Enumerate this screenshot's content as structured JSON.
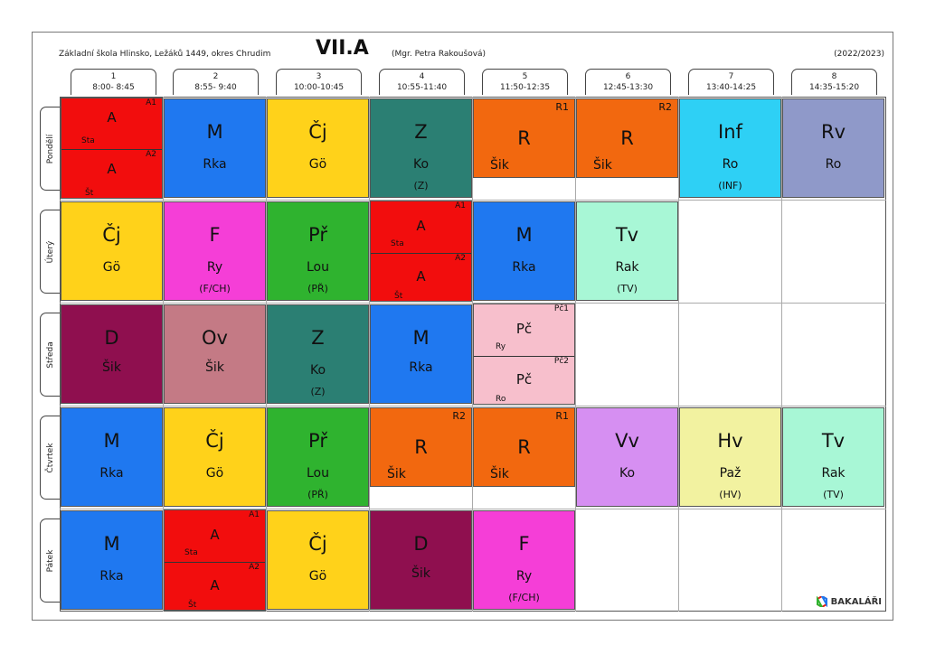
{
  "header": {
    "school": "Základní škola Hlinsko, Ležáků 1449, okres Chrudim",
    "class_name": "VII.A",
    "teacher": "(Mgr. Petra Rakoušová)",
    "year": "(2022/2023)"
  },
  "periods": [
    {
      "num": "1",
      "time": "8:00- 8:45"
    },
    {
      "num": "2",
      "time": "8:55- 9:40"
    },
    {
      "num": "3",
      "time": "10:00-10:45"
    },
    {
      "num": "4",
      "time": "10:55-11:40"
    },
    {
      "num": "5",
      "time": "11:50-12:35"
    },
    {
      "num": "6",
      "time": "12:45-13:30"
    },
    {
      "num": "7",
      "time": "13:40-14:25"
    },
    {
      "num": "8",
      "time": "14:35-15:20"
    }
  ],
  "days": [
    "Pondělí",
    "Úterý",
    "Středa",
    "Čtvrtek",
    "Pátek"
  ],
  "lessons": {
    "mon": {
      "p1": {
        "top": {
          "subject": "A",
          "group": "A1",
          "teacher": "Sta"
        },
        "bottom": {
          "subject": "A",
          "group": "A2",
          "teacher": "Št"
        }
      },
      "p2": {
        "subject": "M",
        "teacher": "Rka"
      },
      "p3": {
        "subject": "Čj",
        "teacher": "Gö"
      },
      "p4": {
        "subject": "Z",
        "teacher": "Ko",
        "room": "(Z)"
      },
      "p5": {
        "subject": "R",
        "teacher": "Šik",
        "group": "R1"
      },
      "p6": {
        "subject": "R",
        "teacher": "Šik",
        "group": "R2"
      },
      "p7": {
        "subject": "Inf",
        "teacher": "Ro",
        "room": "(INF)"
      },
      "p8": {
        "subject": "Rv",
        "teacher": "Ro"
      }
    },
    "tue": {
      "p1": {
        "subject": "Čj",
        "teacher": "Gö"
      },
      "p2": {
        "subject": "F",
        "teacher": "Ry",
        "room": "(F/CH)"
      },
      "p3": {
        "subject": "Př",
        "teacher": "Lou",
        "room": "(PŘ)"
      },
      "p4": {
        "top": {
          "subject": "A",
          "group": "A1",
          "teacher": "Sta"
        },
        "bottom": {
          "subject": "A",
          "group": "A2",
          "teacher": "Št"
        }
      },
      "p5": {
        "subject": "M",
        "teacher": "Rka"
      },
      "p6": {
        "subject": "Tv",
        "teacher": "Rak",
        "room": "(TV)"
      }
    },
    "wed": {
      "p1": {
        "subject": "D",
        "teacher": "Šik"
      },
      "p2": {
        "subject": "Ov",
        "teacher": "Šik"
      },
      "p3": {
        "subject": "Z",
        "teacher": "Ko",
        "room": "(Z)"
      },
      "p4": {
        "subject": "M",
        "teacher": "Rka"
      },
      "p5": {
        "top": {
          "subject": "Pč",
          "group": "Pč1",
          "teacher": "Ry"
        },
        "bottom": {
          "subject": "Pč",
          "group": "Pč2",
          "teacher": "Ro"
        }
      }
    },
    "thu": {
      "p1": {
        "subject": "M",
        "teacher": "Rka"
      },
      "p2": {
        "subject": "Čj",
        "teacher": "Gö"
      },
      "p3": {
        "subject": "Př",
        "teacher": "Lou",
        "room": "(PŘ)"
      },
      "p4": {
        "subject": "R",
        "teacher": "Šik",
        "group": "R2"
      },
      "p5": {
        "subject": "R",
        "teacher": "Šik",
        "group": "R1"
      },
      "p6": {
        "subject": "Vv",
        "teacher": "Ko"
      },
      "p7": {
        "subject": "Hv",
        "teacher": "Paž",
        "room": "(HV)"
      },
      "p8": {
        "subject": "Tv",
        "teacher": "Rak",
        "room": "(TV)"
      }
    },
    "fri": {
      "p1": {
        "subject": "M",
        "teacher": "Rka"
      },
      "p2": {
        "top": {
          "subject": "A",
          "group": "A1",
          "teacher": "Sta"
        },
        "bottom": {
          "subject": "A",
          "group": "A2",
          "teacher": "Št"
        }
      },
      "p3": {
        "subject": "Čj",
        "teacher": "Gö"
      },
      "p4": {
        "subject": "D",
        "teacher": "Šik"
      },
      "p5": {
        "subject": "F",
        "teacher": "Ry",
        "room": "(F/CH)"
      }
    }
  },
  "colors": {
    "A": "#f20d0d",
    "M": "#1f78f0",
    "Čj": "#ffd21a",
    "Z": "#2b7f73",
    "R": "#f2680f",
    "Inf": "#2ed0f5",
    "Rv": "#8f99c9",
    "F": "#f53ed7",
    "Př": "#2fb32f",
    "Tv": "#a8f7d6",
    "D": "#8f0f4f",
    "Ov": "#c47a85",
    "Pč": "#f7bfcc",
    "Vv": "#d68ff2",
    "Hv": "#f2f2a0"
  },
  "footer": {
    "logo": "BAKALÁŘI"
  }
}
